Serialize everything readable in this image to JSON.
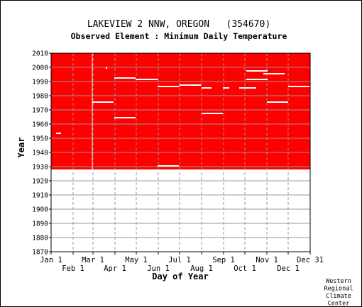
{
  "chart_data": {
    "type": "heatmap",
    "title": "LAKEVIEW 2 NNW, OREGON   (354670)",
    "subtitle": "Observed Element : Minimum Daily Temperature",
    "xlabel": "Day of Year",
    "ylabel": "Year",
    "xlim": [
      "Jan 1",
      "Dec 31"
    ],
    "ylim": [
      1870,
      2010
    ],
    "grid": true,
    "x_ticks_row1": [
      "Jan 1",
      "Mar 1",
      "May 1",
      "Jul 1",
      "Sep 1",
      "Nov 1",
      "Dec 31"
    ],
    "x_ticks_row2": [
      "Feb 1",
      "Apr 1",
      "Jun 1",
      "Aug 1",
      "Oct 1",
      "Dec 1"
    ],
    "y_ticks": [
      2010,
      2000,
      1990,
      1980,
      1970,
      1960,
      1950,
      1940,
      1930,
      1920,
      1910,
      1900,
      1890,
      1880,
      1870
    ],
    "colors": {
      "observed": "#ff0000",
      "missing": "#ffffff",
      "grid": "#999999"
    },
    "observed_period": {
      "start_year": 1928,
      "end_year": 2010,
      "start_day": 1,
      "end_day": 365
    },
    "missing_segments": [
      {
        "year": 2010,
        "start_day": 1,
        "end_day": 365,
        "partial": true
      },
      {
        "year": 1999,
        "start_day": 78,
        "end_day": 79
      },
      {
        "year": 1997,
        "start_day": 276,
        "end_day": 306
      },
      {
        "year": 1995,
        "start_day": 300,
        "end_day": 330
      },
      {
        "year": 1992,
        "start_day": 90,
        "end_day": 120
      },
      {
        "year": 1991,
        "start_day": 120,
        "end_day": 151
      },
      {
        "year": 1991,
        "start_day": 276,
        "end_day": 306
      },
      {
        "year": 1987,
        "start_day": 182,
        "end_day": 212
      },
      {
        "year": 1986,
        "start_day": 151,
        "end_day": 182
      },
      {
        "year": 1986,
        "start_day": 335,
        "end_day": 365
      },
      {
        "year": 1985,
        "start_day": 213,
        "end_day": 227
      },
      {
        "year": 1985,
        "start_day": 243,
        "end_day": 252
      },
      {
        "year": 1985,
        "start_day": 266,
        "end_day": 290
      },
      {
        "year": 1975,
        "start_day": 59,
        "end_day": 89
      },
      {
        "year": 1975,
        "start_day": 305,
        "end_day": 335
      },
      {
        "year": 1967,
        "start_day": 213,
        "end_day": 243
      },
      {
        "year": 1964,
        "start_day": 90,
        "end_day": 120
      },
      {
        "year": 1953,
        "start_day": 8,
        "end_day": 15
      },
      {
        "year": 1930,
        "start_day": 151,
        "end_day": 181
      }
    ],
    "missing_columns": [
      {
        "day": 59,
        "start_year": 1928,
        "end_year": 2010
      }
    ]
  },
  "credit": [
    "Western",
    "Regional",
    "Climate",
    "Center"
  ]
}
